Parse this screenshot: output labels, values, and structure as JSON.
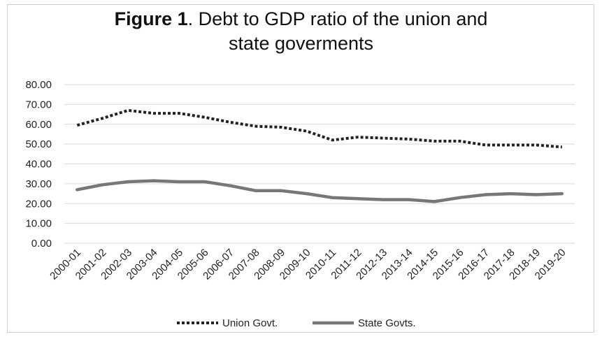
{
  "chart_data": {
    "type": "line",
    "title": "Figure 1",
    "title_rest_line1": ". Debt to GDP ratio of the union  and",
    "title_rest_line2": "state goverments",
    "xlabel": "",
    "ylabel": "",
    "ylim": [
      0,
      80
    ],
    "y_ticks": [
      "0.00",
      "10.00",
      "20.00",
      "30.00",
      "40.00",
      "50.00",
      "60.00",
      "70.00",
      "80.00"
    ],
    "grid": true,
    "legend_position": "bottom",
    "categories": [
      "2000-01",
      "2001-02",
      "2002-03",
      "2003-04",
      "2004-05",
      "2005-06",
      "2006-07",
      "2007-08",
      "2008-09",
      "2009-10",
      "2010-11",
      "2011-12",
      "2012-13",
      "2013-14",
      "2014-15",
      "2015-16",
      "2016-17",
      "2017-18",
      "2018-19",
      "2019-20"
    ],
    "series": [
      {
        "name": "Union Govt.",
        "style": "dotted",
        "color": "#222222",
        "values": [
          59.5,
          63.0,
          67.0,
          65.5,
          65.5,
          63.5,
          61.0,
          59.0,
          58.5,
          56.5,
          52.0,
          53.5,
          53.0,
          52.5,
          51.5,
          51.5,
          49.5,
          49.5,
          49.5,
          48.5
        ]
      },
      {
        "name": "State Govts.",
        "style": "solid",
        "color": "#777777",
        "values": [
          27.0,
          29.5,
          31.0,
          31.5,
          31.0,
          31.0,
          29.0,
          26.5,
          26.5,
          25.0,
          23.0,
          22.5,
          22.0,
          22.0,
          21.0,
          23.0,
          24.5,
          25.0,
          24.5,
          25.0
        ]
      }
    ]
  }
}
